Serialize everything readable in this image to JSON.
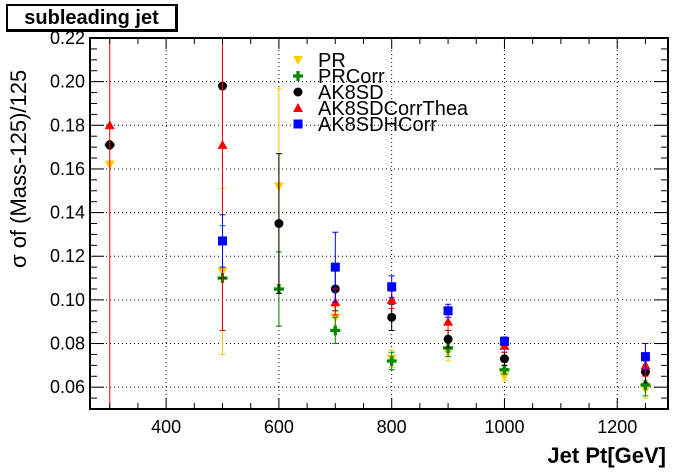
{
  "chart_data": {
    "type": "scatter",
    "title": "subleading jet",
    "xlabel": "Jet Pt[GeV]",
    "ylabel": "σ of (Mass-125)/125",
    "xlim": [
      265,
      1290
    ],
    "ylim": [
      0.05,
      0.22
    ],
    "x_ticks": [
      "400",
      "600",
      "800",
      "1000",
      "1200"
    ],
    "x_tick_values": [
      400,
      600,
      800,
      1000,
      1200
    ],
    "y_ticks": [
      "0.06",
      "0.08",
      "0.10",
      "0.12",
      "0.14",
      "0.16",
      "0.18",
      "0.20",
      "0.22"
    ],
    "y_tick_values": [
      0.06,
      0.08,
      0.1,
      0.12,
      0.14,
      0.16,
      0.18,
      0.2,
      0.22
    ],
    "grid": true,
    "legend_position": "top-center",
    "series": [
      {
        "name": "PR",
        "color": "#ffcc00",
        "marker": "triangle-down",
        "x": [
          300,
          500,
          600,
          700,
          800,
          900,
          1000,
          1250
        ],
        "y": [
          0.162,
          0.113,
          0.152,
          0.092,
          0.073,
          0.076,
          0.065,
          0.059
        ],
        "err": [
          0.0,
          0.038,
          0.045,
          0.005,
          0.004,
          0.004,
          0.002,
          0.004
        ]
      },
      {
        "name": "PRCorr",
        "color": "#008800",
        "marker": "cross",
        "x": [
          300,
          500,
          600,
          700,
          800,
          900,
          1000,
          1250
        ],
        "y": [
          0.171,
          0.11,
          0.105,
          0.086,
          0.072,
          0.078,
          0.068,
          0.061
        ],
        "err": [
          0.0,
          0.024,
          0.017,
          0.006,
          0.004,
          0.004,
          0.002,
          0.005
        ]
      },
      {
        "name": "AK8SD",
        "color": "#000000",
        "marker": "circle",
        "x": [
          300,
          500,
          600,
          700,
          800,
          900,
          1000,
          1250
        ],
        "y": [
          0.171,
          0.198,
          0.135,
          0.105,
          0.092,
          0.082,
          0.073,
          0.067
        ],
        "err": [
          0.0,
          0.088,
          0.032,
          0.01,
          0.006,
          0.004,
          0.003,
          0.005
        ]
      },
      {
        "name": "AK8SDCorrThea",
        "color": "#ff0000",
        "marker": "triangle-up",
        "x": [
          300,
          500,
          700,
          800,
          900,
          1000,
          1250
        ],
        "y": [
          0.18,
          0.171,
          0.099,
          0.1,
          0.09,
          0.079,
          0.07
        ],
        "err": [
          0.15,
          0.085,
          0.006,
          0.004,
          0.004,
          0.003,
          0.005
        ]
      },
      {
        "name": "AK8SDHCorr",
        "color": "#0000ff",
        "marker": "square",
        "x": [
          500,
          700,
          800,
          900,
          1000,
          1250
        ],
        "y": [
          0.127,
          0.115,
          0.106,
          0.095,
          0.081,
          0.074
        ],
        "err": [
          0.012,
          0.016,
          0.005,
          0.003,
          0.002,
          0.006
        ]
      }
    ]
  }
}
